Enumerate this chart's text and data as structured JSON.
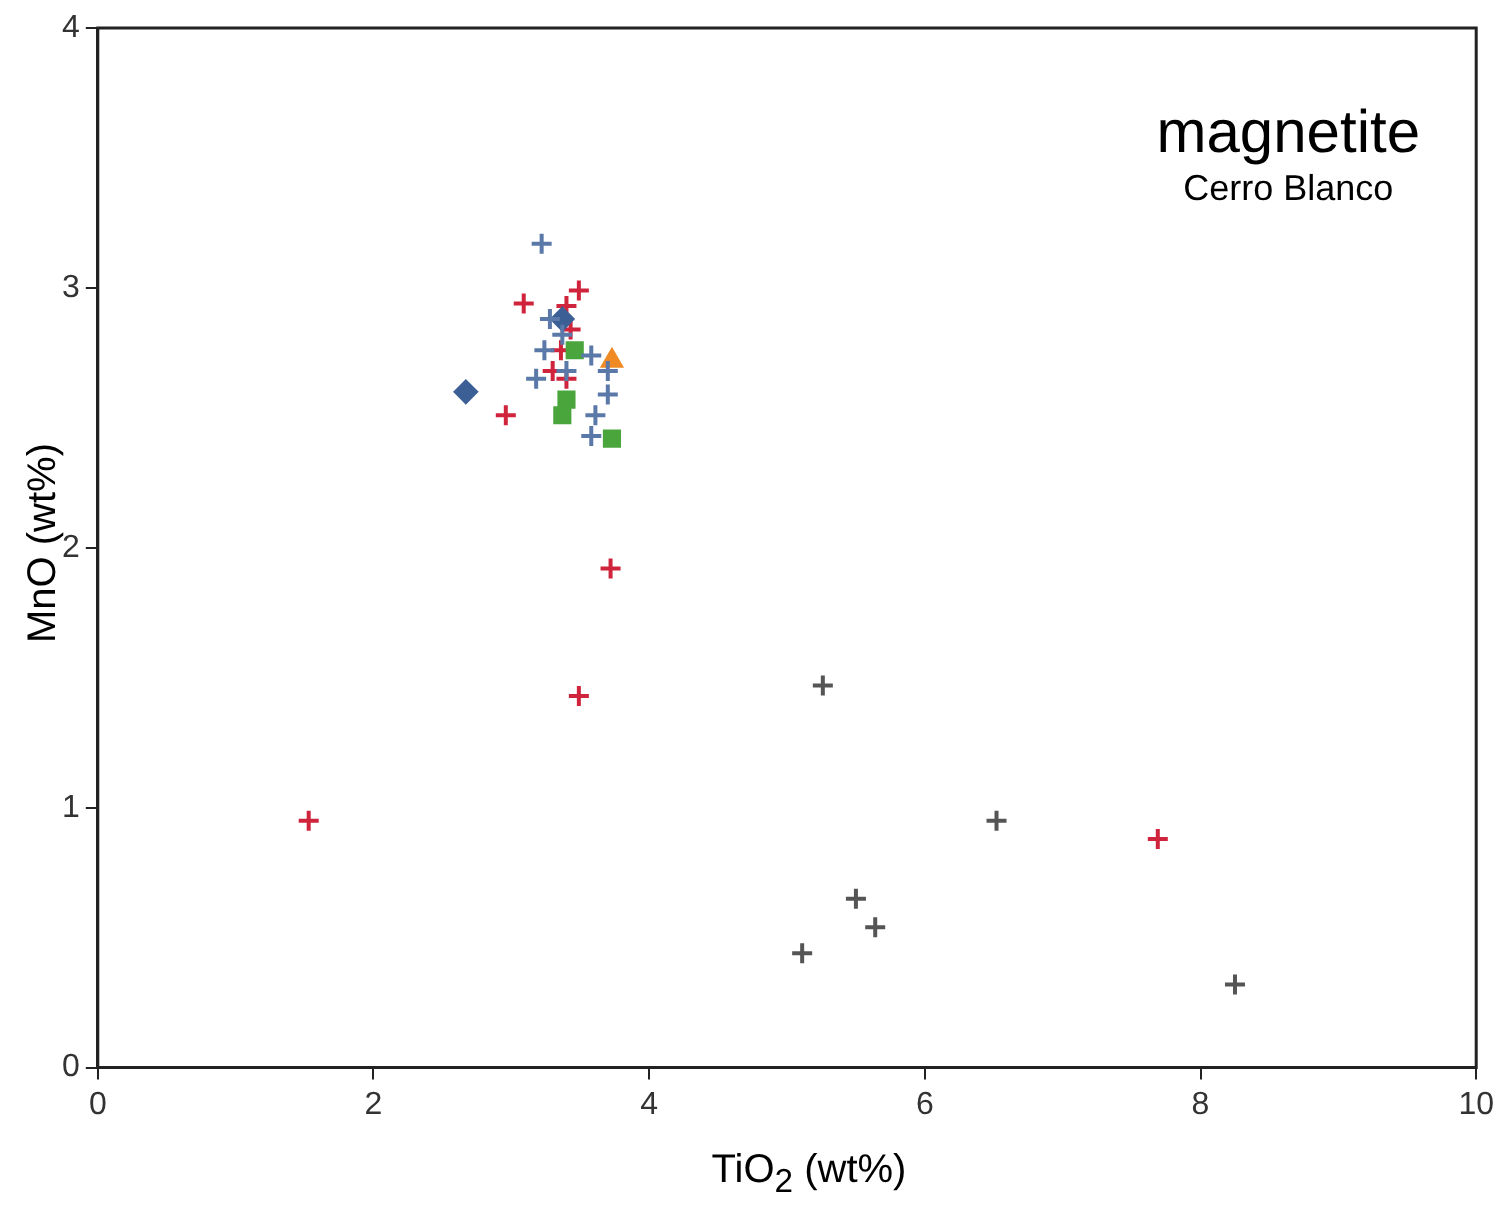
{
  "chart_data": {
    "type": "scatter",
    "title": "magnetite",
    "subtitle": "Cerro Blanco",
    "xlabel": "TiO$_{2}$ (wt%)",
    "ylabel": "MnO (wt%)",
    "xlim": [
      0,
      10
    ],
    "xticks": [
      0,
      2,
      4,
      6,
      8,
      10
    ],
    "ylim": [
      0,
      4
    ],
    "yticks": [
      0,
      1,
      2,
      3,
      4
    ],
    "grid": false,
    "legend": false,
    "series": [
      {
        "color": "#5a79a8",
        "marker": "cross",
        "x": [
          3.22,
          3.28,
          3.18,
          3.24,
          3.4,
          3.58,
          3.7,
          3.7,
          3.61,
          3.58,
          3.37
        ],
        "values": [
          3.17,
          2.88,
          2.65,
          2.76,
          2.68,
          2.74,
          2.68,
          2.59,
          2.51,
          2.43,
          2.82
        ]
      },
      {
        "color": "#3c5f96",
        "marker": "diamond",
        "x": [
          2.67,
          3.37
        ],
        "values": [
          2.6,
          2.88
        ]
      },
      {
        "color": "#4aa63c",
        "marker": "square",
        "x": [
          3.37,
          3.4,
          3.73,
          3.46
        ],
        "values": [
          2.51,
          2.57,
          2.42,
          2.76
        ]
      },
      {
        "color": "#f08a24",
        "marker": "triangle",
        "x": [
          3.73
        ],
        "values": [
          2.72
        ]
      },
      {
        "color": "#d0243c",
        "marker": "cross",
        "x": [
          3.09,
          2.96,
          3.49,
          3.4,
          3.36,
          3.3,
          3.4,
          3.43,
          3.72,
          3.49,
          1.53,
          7.69
        ],
        "values": [
          2.94,
          2.51,
          2.99,
          2.93,
          2.76,
          2.68,
          2.65,
          2.84,
          1.92,
          1.43,
          0.95,
          0.88
        ]
      },
      {
        "color": "#555555",
        "marker": "cross",
        "x": [
          5.26,
          6.52,
          5.5,
          5.64,
          5.11,
          8.25
        ],
        "values": [
          1.47,
          0.95,
          0.65,
          0.54,
          0.44,
          0.32
        ]
      }
    ]
  }
}
